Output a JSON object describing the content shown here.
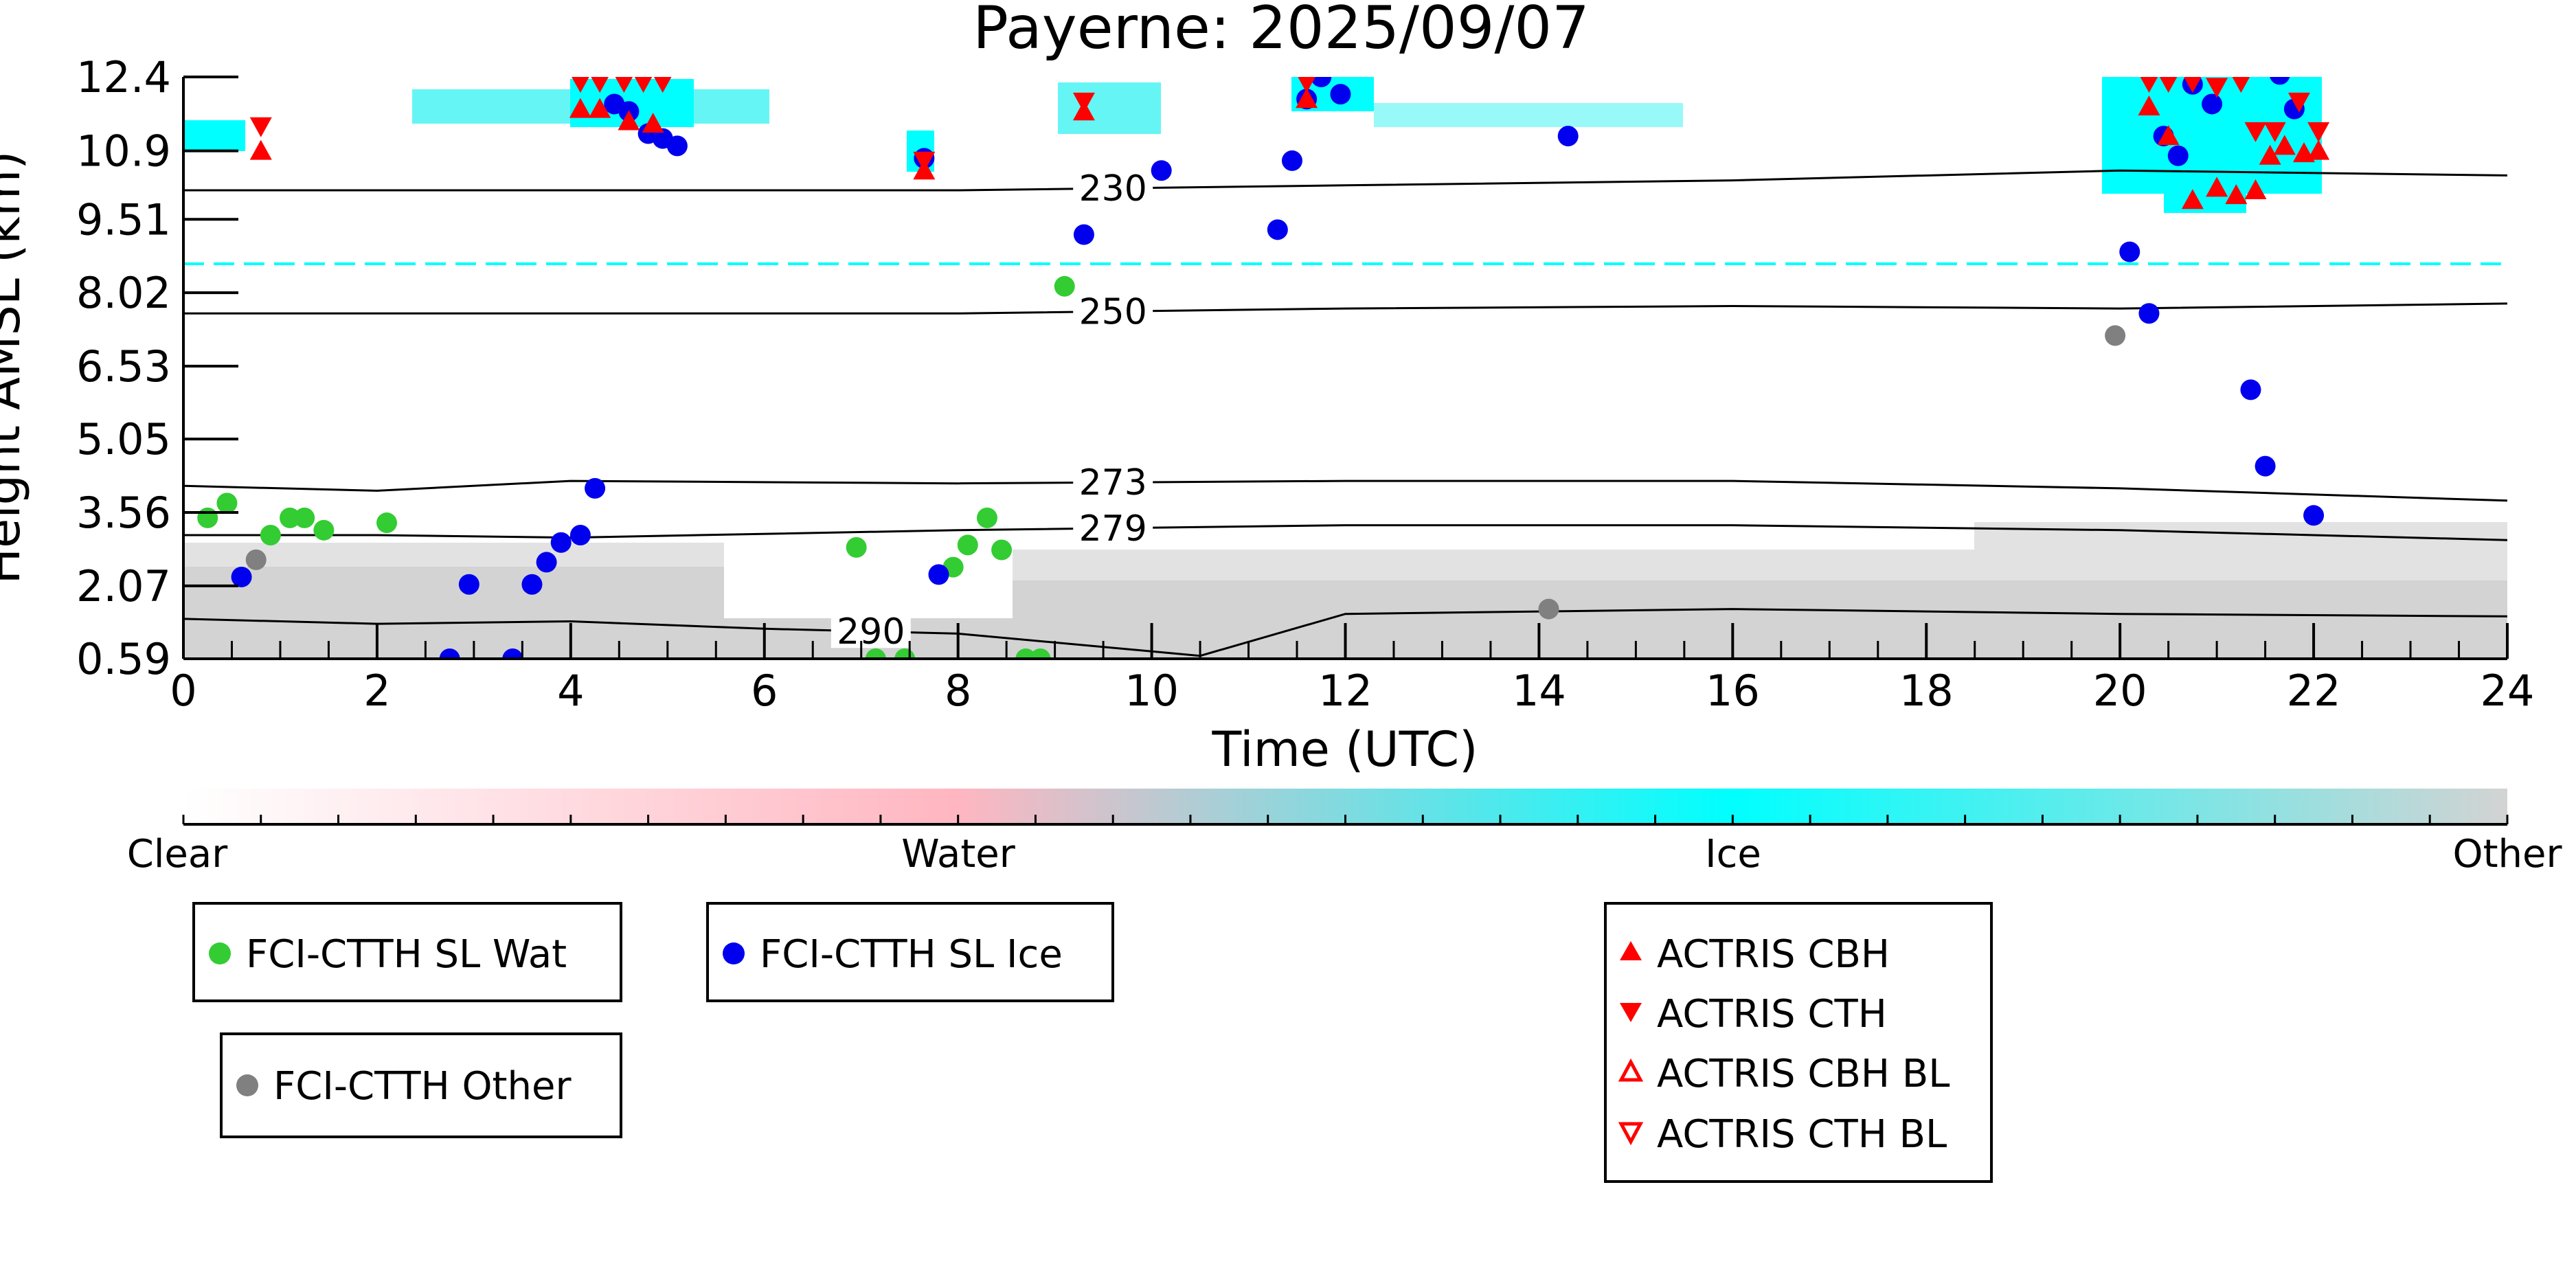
{
  "chart_data": {
    "type": "scatter",
    "title": "Payerne: 2025/09/07",
    "xlabel": "Time (UTC)",
    "ylabel": "Height AMSL (km)",
    "xlim": [
      0,
      24
    ],
    "ylim": [
      0.59,
      12.4
    ],
    "x_ticks": [
      "0",
      "2",
      "4",
      "6",
      "8",
      "10",
      "12",
      "14",
      "16",
      "18",
      "20",
      "22",
      "24"
    ],
    "y_ticks": [
      "0.59",
      "2.07",
      "3.56",
      "5.05",
      "6.53",
      "8.02",
      "9.51",
      "10.9",
      "12.4"
    ],
    "colorbar": {
      "labels": [
        "Clear",
        "Water",
        "Ice",
        "Other"
      ],
      "colors": [
        "#ffffff",
        "#ffb6c1",
        "#00ffff",
        "#d3d3d3"
      ]
    },
    "contours": [
      {
        "label": "230",
        "x": [
          0,
          4,
          8,
          12,
          16,
          20,
          24
        ],
        "y": [
          10.1,
          10.1,
          10.1,
          10.2,
          10.3,
          10.5,
          10.4
        ]
      },
      {
        "label": "250",
        "x": [
          0,
          4,
          8,
          12,
          16,
          20,
          24
        ],
        "y": [
          7.6,
          7.6,
          7.6,
          7.7,
          7.75,
          7.7,
          7.8
        ]
      },
      {
        "label": "273",
        "x": [
          0,
          2,
          4,
          8,
          12,
          16,
          20,
          24
        ],
        "y": [
          4.1,
          4.0,
          4.2,
          4.15,
          4.2,
          4.2,
          4.05,
          3.8
        ]
      },
      {
        "label": "279",
        "x": [
          0,
          2,
          4,
          8,
          12,
          16,
          20,
          24
        ],
        "y": [
          3.1,
          3.1,
          3.05,
          3.2,
          3.3,
          3.3,
          3.2,
          3.0
        ]
      },
      {
        "label": "290",
        "x": [
          0,
          2,
          4,
          6,
          8,
          10.5,
          12,
          16,
          20,
          24
        ],
        "y": [
          1.4,
          1.3,
          1.35,
          1.2,
          1.1,
          0.65,
          1.5,
          1.6,
          1.5,
          1.45
        ]
      }
    ],
    "series": [
      {
        "name": "FCI-CTTH SL Wat",
        "color": "#33cc33",
        "marker": "circle",
        "x": [
          0.25,
          0.45,
          0.9,
          1.1,
          1.25,
          1.45,
          2.1,
          6.95,
          7.15,
          7.45,
          7.95,
          8.1,
          8.3,
          8.45,
          8.7,
          8.85,
          9.1
        ],
        "y": [
          3.45,
          3.75,
          3.1,
          3.45,
          3.45,
          3.2,
          3.35,
          2.85,
          0.59,
          0.59,
          2.45,
          2.9,
          3.45,
          2.8,
          0.59,
          0.59,
          8.15
        ]
      },
      {
        "name": "FCI-CTTH SL Ice",
        "color": "#0000ee",
        "marker": "circle",
        "x": [
          0.6,
          2.95,
          2.75,
          3.4,
          3.6,
          3.75,
          3.9,
          4.1,
          4.25,
          4.45,
          4.6,
          4.8,
          4.95,
          5.1,
          7.65,
          7.8,
          9.3,
          10.1,
          11.3,
          11.45,
          11.6,
          11.75,
          11.95,
          14.3,
          20.1,
          20.3,
          20.45,
          20.6,
          20.75,
          20.95,
          21.35,
          21.5,
          21.65,
          21.8,
          22.0
        ],
        "y": [
          2.25,
          2.1,
          0.59,
          0.59,
          2.1,
          2.55,
          2.95,
          3.1,
          4.05,
          11.85,
          11.7,
          11.25,
          11.15,
          11.0,
          10.75,
          2.3,
          9.2,
          10.5,
          9.3,
          10.7,
          11.95,
          12.4,
          12.05,
          11.2,
          8.85,
          7.6,
          11.2,
          10.8,
          12.25,
          11.85,
          6.05,
          4.5,
          12.45,
          11.75,
          3.5
        ]
      },
      {
        "name": "FCI-CTTH Other",
        "color": "#808080",
        "marker": "circle",
        "x": [
          0.75,
          14.1,
          19.95
        ],
        "y": [
          2.6,
          1.6,
          7.15
        ]
      },
      {
        "name": "ACTRIS CBH",
        "color": "#ff0000",
        "marker": "triangle-up",
        "x": [
          0.8,
          4.1,
          4.3,
          4.6,
          4.85,
          7.65,
          9.3,
          11.6,
          20.3,
          20.5,
          20.75,
          21.0,
          21.2,
          21.4,
          21.55,
          21.7,
          21.9,
          22.05
        ],
        "y": [
          10.9,
          11.75,
          11.75,
          11.5,
          11.45,
          10.5,
          11.7,
          11.95,
          11.8,
          11.2,
          9.9,
          10.15,
          10.0,
          10.1,
          10.8,
          11.0,
          10.85,
          10.9
        ]
      },
      {
        "name": "ACTRIS CTH",
        "color": "#ff0000",
        "marker": "triangle-down",
        "x": [
          0.8,
          4.1,
          4.3,
          4.55,
          4.75,
          4.95,
          7.65,
          9.3,
          11.6,
          20.3,
          20.5,
          20.75,
          21.0,
          21.25,
          21.4,
          21.6,
          21.85,
          22.05
        ],
        "y": [
          11.4,
          12.3,
          12.3,
          12.3,
          12.3,
          12.3,
          10.7,
          11.9,
          12.3,
          12.3,
          12.3,
          12.3,
          12.2,
          12.3,
          11.3,
          11.3,
          11.9,
          11.3
        ]
      },
      {
        "name": "ACTRIS CBH BL",
        "color": "#ff0000",
        "marker": "triangle-up-open",
        "x": [],
        "y": []
      },
      {
        "name": "ACTRIS CTH BL",
        "color": "#ff0000",
        "marker": "triangle-down-open",
        "x": [],
        "y": []
      }
    ]
  }
}
